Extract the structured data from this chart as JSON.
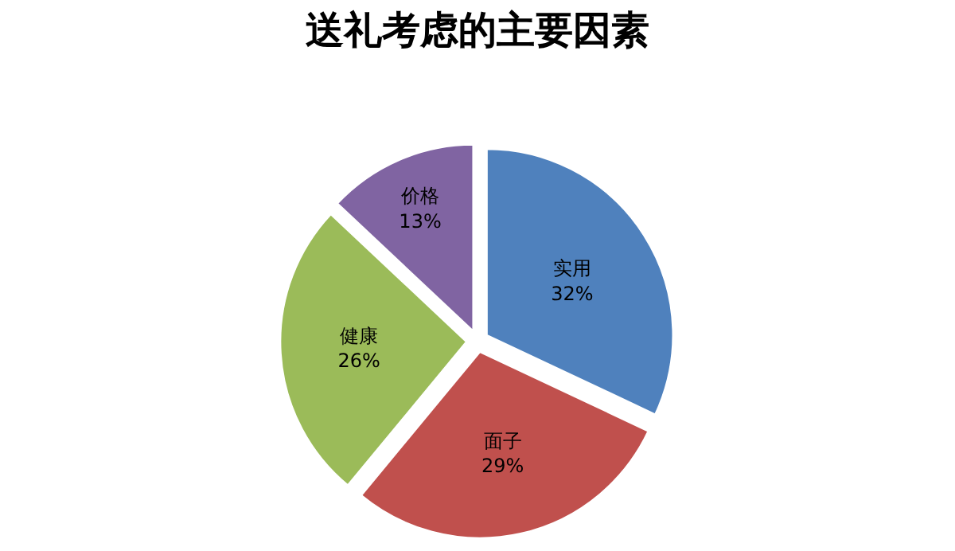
{
  "chart_data": {
    "type": "pie",
    "title": "送礼考虑的主要因素",
    "categories": [
      "实用",
      "面子",
      "健康",
      "价格"
    ],
    "values": [
      32,
      29,
      26,
      13
    ],
    "value_labels": [
      "32%",
      "29%",
      "26%",
      "13%"
    ],
    "colors": [
      "#4f81bd",
      "#c0504d",
      "#9bbb59",
      "#8064a2"
    ],
    "legend": false
  }
}
